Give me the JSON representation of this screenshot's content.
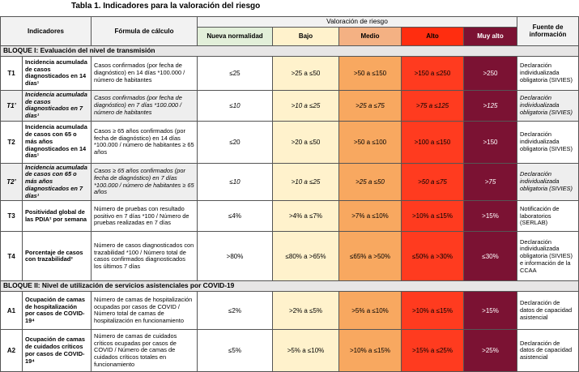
{
  "header": {
    "title": "Tabla 1. Indicadores para la valoración del riesgo"
  },
  "table": {
    "headers": {
      "indicadores": "Indicadores",
      "formula": "Fórmula de cálculo",
      "valoracion": "Valoración de riesgo",
      "levels": [
        "Nueva normalidad",
        "Bajo",
        "Medio",
        "Alto",
        "Muy alto"
      ],
      "fuente": "Fuente de información"
    },
    "sections": [
      {
        "title": "BLOQUE I: Evaluación del nivel de transmisión",
        "rows": [
          {
            "code": "T1",
            "indicator": "Incidencia acumulada de casos diagnosticados en 14 días¹",
            "formula": "Casos confirmados (por fecha de diagnóstico) en 14 días *100.000 / número de habitantes",
            "values": [
              "≤25",
              ">25 a ≤50",
              ">50 a ≤150",
              ">150 a ≤250",
              ">250"
            ],
            "source": "Declaración individualizada obligatoria (SIVIES)"
          },
          {
            "code": "T1’",
            "indicator": "Incidencia acumulada de casos diagnosticados en 7 días¹",
            "formula": "Casos confirmados (por fecha de diagnóstico) en 7 días *100.000 / número de habitantes",
            "values": [
              "≤10",
              ">10 a ≤25",
              ">25 a ≤75",
              ">75 a ≤125",
              ">125"
            ],
            "source": "Declaración individualizada obligatoria (SIVIES)"
          },
          {
            "code": "T2",
            "indicator": "Incidencia acumulada de casos con 65 o más años diagnosticados en 14 días¹",
            "formula": "Casos ≥ 65 años confirmados (por fecha de diagnóstico) en 14 días *100.000 / número de habitantes ≥ 65 años",
            "values": [
              "≤20",
              ">20 a ≤50",
              ">50 a ≤100",
              ">100 a ≤150",
              ">150"
            ],
            "source": "Declaración individualizada obligatoria (SIVIES)"
          },
          {
            "code": "T2’",
            "indicator": "Incidencia acumulada de casos con 65 o más años diagnosticados en 7 días¹",
            "formula": "Casos ≥ 65 años confirmados (por fecha de diagnóstico) en 7 días *100.000 / número de habitantes ≥ 65 años",
            "values": [
              "≤10",
              ">10 a ≤25",
              ">25 a ≤50",
              ">50 a ≤75",
              ">75"
            ],
            "source": "Declaración individualizada obligatoria (SIVIES)"
          },
          {
            "code": "T3",
            "indicator": "Positividad global de las PDIA² por semana",
            "formula": "Número de pruebas con resultado positivo en 7 días *100 / Número de pruebas realizadas en 7 días",
            "values": [
              "≤4%",
              ">4% a ≤7%",
              ">7% a ≤10%",
              ">10% a ≤15%",
              ">15%"
            ],
            "source": "Notificación de laboratorios (SERLAB)"
          },
          {
            "code": "T4",
            "indicator": "Porcentaje de casos con trazabilidad³",
            "formula": "Número de casos diagnosticados con trazabilidad *100 / Número total de casos confirmados diagnosticados los últimos 7 días",
            "values": [
              ">80%",
              "≤80% a >65%",
              "≤65% a >50%",
              "≤50% a >30%",
              "≤30%"
            ],
            "source": "Declaración individualizada obligatoria (SIVIES) e información de la CCAA"
          }
        ]
      },
      {
        "title": "BLOQUE II: Nivel de utilización de servicios asistenciales por COVID-19",
        "rows": [
          {
            "code": "A1",
            "indicator": "Ocupación de camas de hospitalización por casos de COVID-19⁴",
            "formula": "Número de camas de hospitalización ocupadas por casos de COVID / Número total de camas de hospitalización en funcionamiento",
            "values": [
              "≤2%",
              ">2% a ≤5%",
              ">5% a ≤10%",
              ">10% a ≤15%",
              ">15%"
            ],
            "source": "Declaración de datos de capacidad asistencial"
          },
          {
            "code": "A2",
            "indicator": "Ocupación de camas de cuidados críticos por casos de COVID-19⁴",
            "formula": "Número de camas de cuidados críticos ocupadas por casos de COVID / Número de camas de cuidados críticos totales en funcionamiento",
            "values": [
              "≤5%",
              ">5% a ≤10%",
              ">10% a ≤15%",
              ">15% a ≤25%",
              ">25%"
            ],
            "source": "Declaración de datos de capacidad asistencial"
          }
        ]
      }
    ]
  }
}
